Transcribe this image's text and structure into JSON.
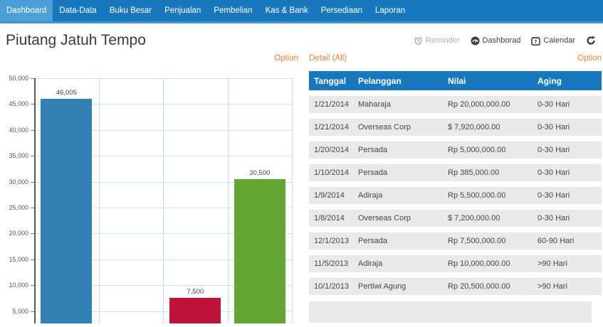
{
  "nav": {
    "items": [
      {
        "label": "Dashboard",
        "active": true
      },
      {
        "label": "Data-Data",
        "active": false
      },
      {
        "label": "Buku Besar",
        "active": false
      },
      {
        "label": "Penjualan",
        "active": false
      },
      {
        "label": "Pembelian",
        "active": false
      },
      {
        "label": "Kas & Bank",
        "active": false
      },
      {
        "label": "Persediaan",
        "active": false
      },
      {
        "label": "Laporan",
        "active": false
      }
    ]
  },
  "header": {
    "title": "Piutang Jatuh Tempo",
    "toolbar": {
      "reminder": "Reminder",
      "dashboard": "Dashborad",
      "calendar": "Calendar"
    }
  },
  "chart_panel": {
    "option_label": "Option"
  },
  "detail_panel": {
    "title": "Detail (All)",
    "option_label": "Option"
  },
  "chart_data": {
    "type": "bar",
    "title": "",
    "xlabel": "",
    "ylabel": "",
    "categories": [
      "",
      "",
      "",
      ""
    ],
    "values": [
      46005,
      0,
      7500,
      30500
    ],
    "labels": [
      "46,005",
      "",
      "7,500",
      "30,500"
    ],
    "colors": [
      "#3181B5",
      "",
      "#BE1238",
      "#63A532"
    ],
    "ylim": [
      0,
      50000
    ],
    "ytick_step": 5000,
    "ytick_labels": [
      "50,000",
      "45,000",
      "40,000",
      "35,000",
      "30,000",
      "25,000",
      "20,000",
      "15,000",
      "10,000",
      "5,000"
    ],
    "grid": true,
    "legend": false
  },
  "table": {
    "columns": [
      "Tanggal",
      "Pelanggan",
      "Nilai",
      "Aging"
    ],
    "rows": [
      [
        "1/21/2014",
        "Maharaja",
        "Rp 20,000,000.00",
        "0-30 Hari"
      ],
      [
        "1/21/2014",
        "Overseas Corp",
        "$ 7,920,000.00",
        "0-30 Hari"
      ],
      [
        "1/20/2014",
        "Persada",
        "Rp 5,000,000.00",
        "0-30 Hari"
      ],
      [
        "1/10/2014",
        "Persada",
        "Rp 385,000.00",
        "0-30 Hari"
      ],
      [
        "1/9/2014",
        "Adiraja",
        "Rp 5,500,000.00",
        "0-30 Hari"
      ],
      [
        "1/8/2014",
        "Overseas Corp",
        "$ 7,200,000.00",
        "0-30 Hari"
      ],
      [
        "12/1/2013",
        "Persada",
        "Rp 7,500,000.00",
        "60-90 Hari"
      ],
      [
        "11/5/2013",
        "Adiraja",
        "Rp 10,000,000.00",
        ">90 Hari"
      ],
      [
        "10/1/2013",
        "Pertiwi Agung",
        "Rp 20,500,000.00",
        ">90 Hari"
      ]
    ]
  },
  "colors": {
    "nav_bg": "#1878BD",
    "nav_active": "#4E9FD7",
    "accent_orange": "#E8823B",
    "row_gray": "#E9E9E9",
    "bar_blue": "#3181B5",
    "bar_red": "#BE1238",
    "bar_green": "#63A532"
  }
}
